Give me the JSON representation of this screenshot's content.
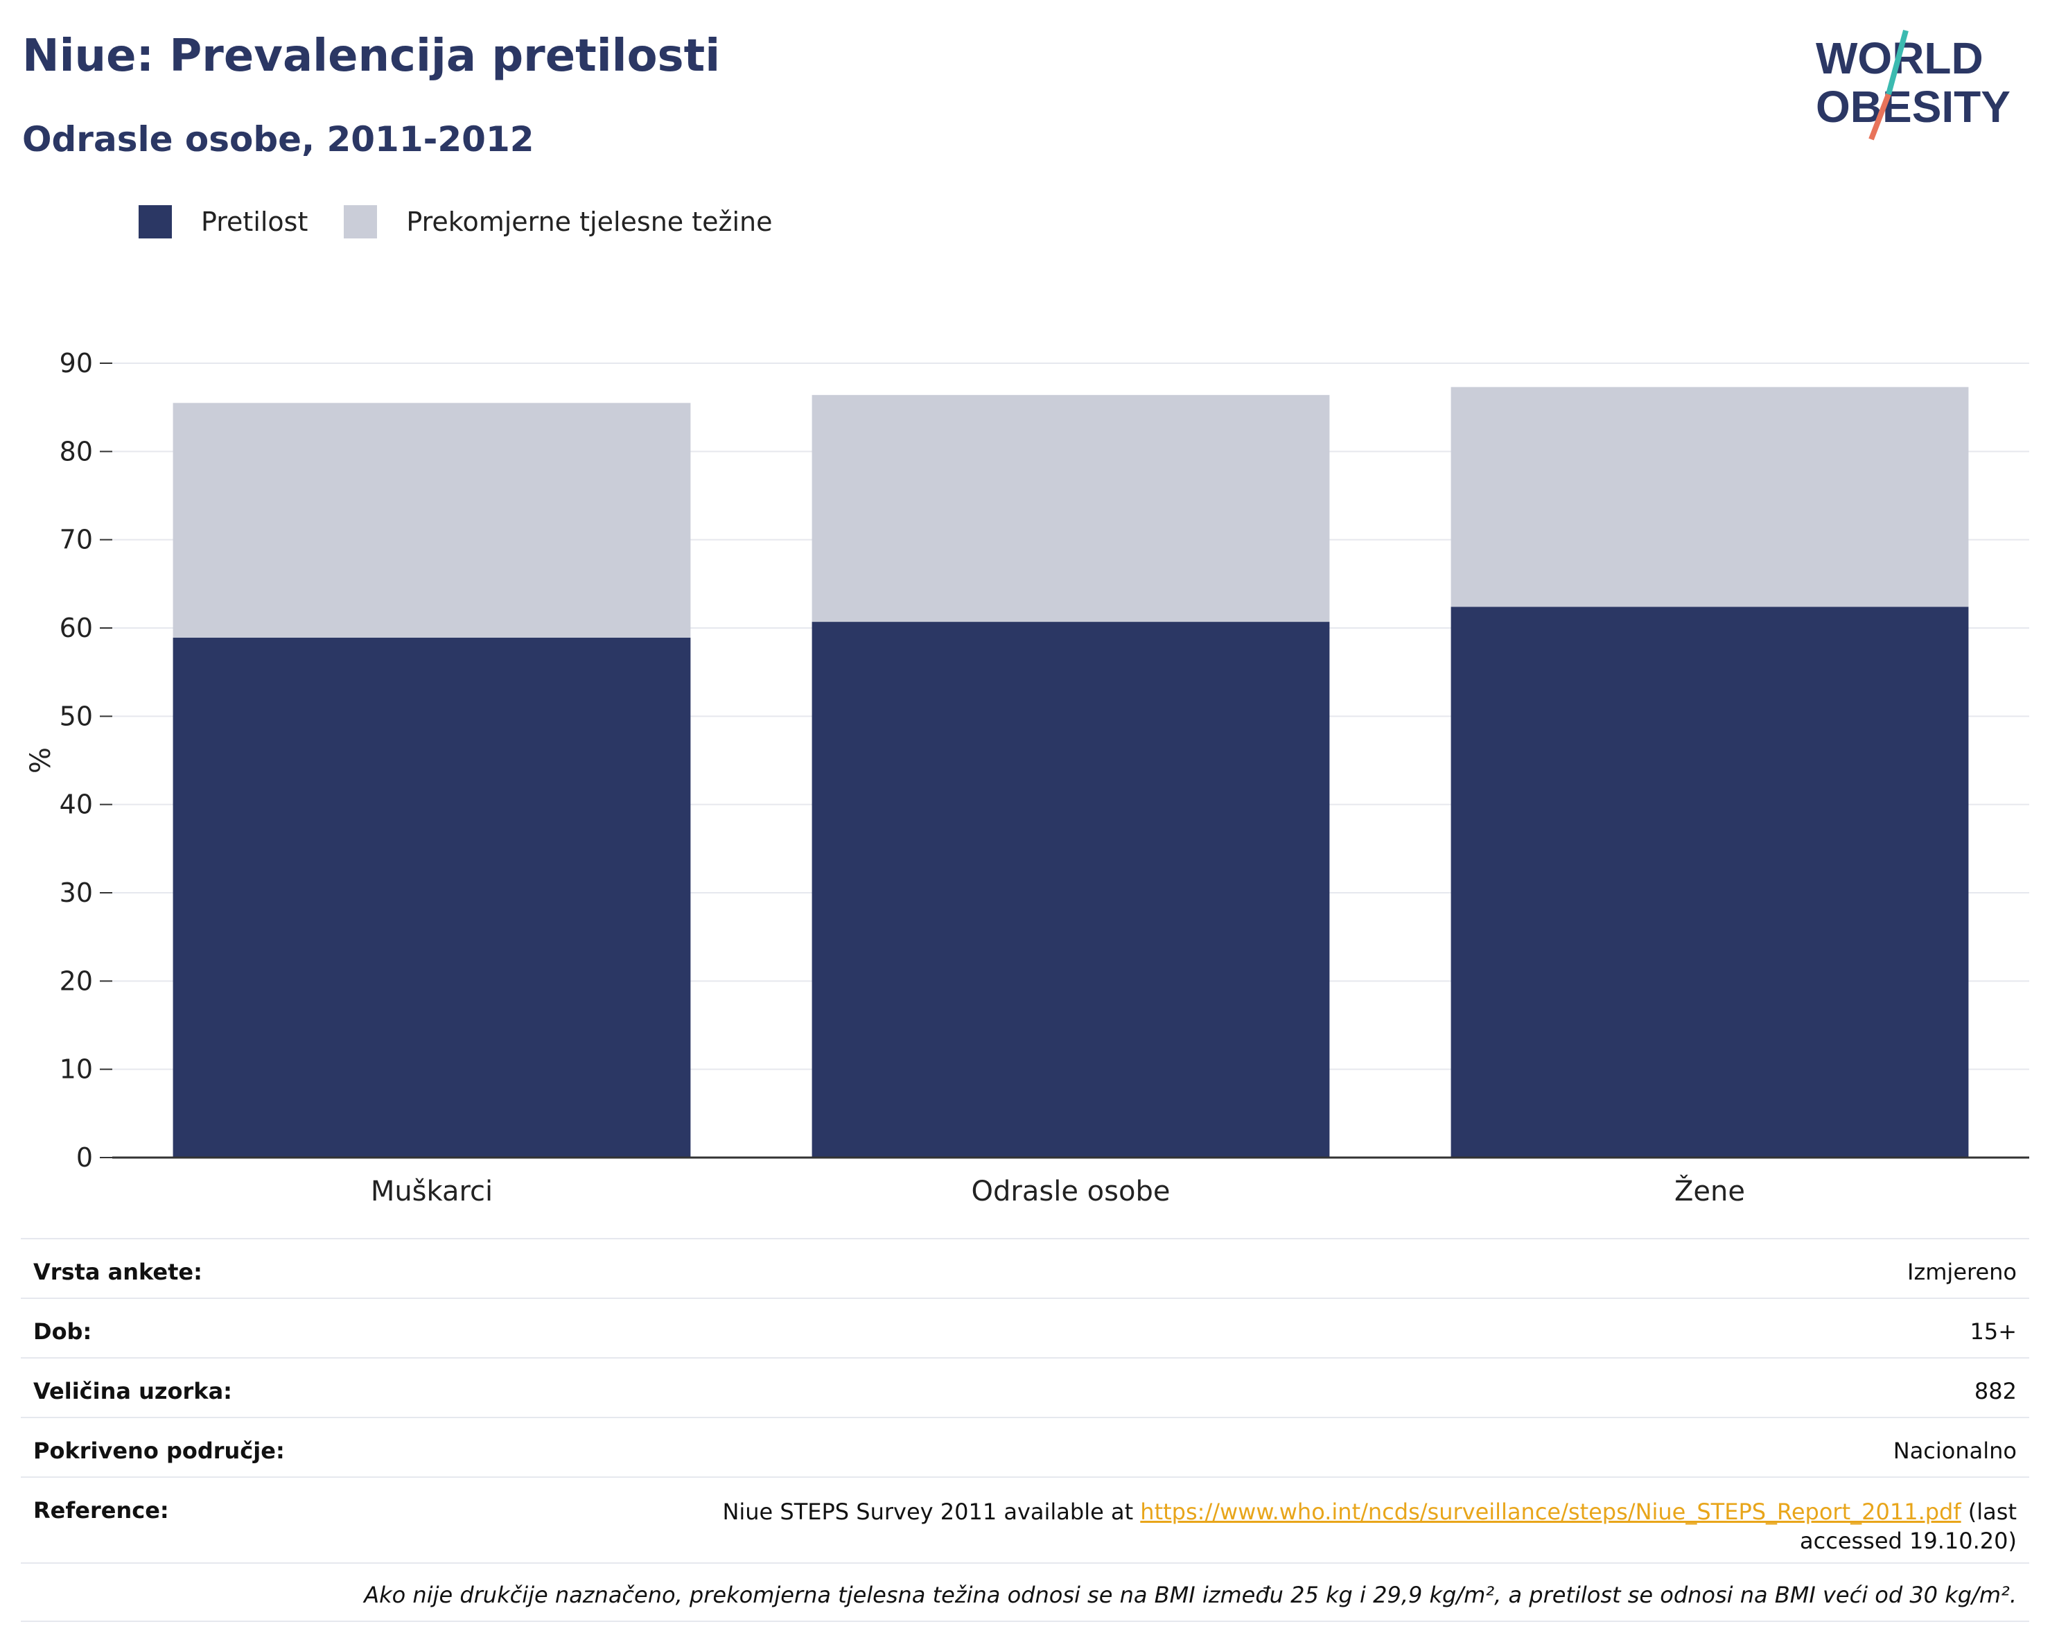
{
  "header": {
    "title": "Niue: Prevalencija pretilosti",
    "subtitle": "Odrasle osobe, 2011-2012"
  },
  "logo": {
    "line1": "WORLD",
    "line2": "OBESITY"
  },
  "legend": [
    {
      "label": "Pretilost",
      "color": "#2b3764"
    },
    {
      "label": "Prekomjerne tjelesne težine",
      "color": "#cacdd8"
    }
  ],
  "chart_data": {
    "type": "bar",
    "stacked": true,
    "categories": [
      "Muškarci",
      "Odrasle osobe",
      "Žene"
    ],
    "series": [
      {
        "name": "Pretilost",
        "values": [
          58.9,
          60.7,
          62.4
        ],
        "color": "#2b3764"
      },
      {
        "name": "Prekomjerne tjelesne težine",
        "values": [
          26.6,
          25.7,
          24.9
        ],
        "color": "#cacdd8"
      }
    ],
    "ylabel": "%",
    "ylim": [
      0,
      90
    ],
    "yticks": [
      0,
      10,
      20,
      30,
      40,
      50,
      60,
      70,
      80,
      90
    ],
    "grid": true,
    "legend_position": "top-left"
  },
  "info": {
    "survey_type": {
      "label": "Vrsta ankete:",
      "value": "Izmjereno"
    },
    "age": {
      "label": "Dob:",
      "value": "15+"
    },
    "sample_size": {
      "label": "Veličina uzorka:",
      "value": "882"
    },
    "coverage": {
      "label": "Pokriveno područje:",
      "value": "Nacionalno"
    },
    "reference": {
      "label": "Reference:",
      "prefix": "Niue STEPS Survey 2011 available at ",
      "link": "https://www.who.int/ncds/surveillance/steps/Niue_STEPS_Report_2011.pdf",
      "suffix": " (last accessed 19.10.20)"
    },
    "note": "Ako nije drukčije naznačeno, prekomjerna tjelesna težina odnosi se na BMI između 25 kg i 29,9 kg/m², a pretilost se odnosi na BMI veći od 30 kg/m²."
  }
}
